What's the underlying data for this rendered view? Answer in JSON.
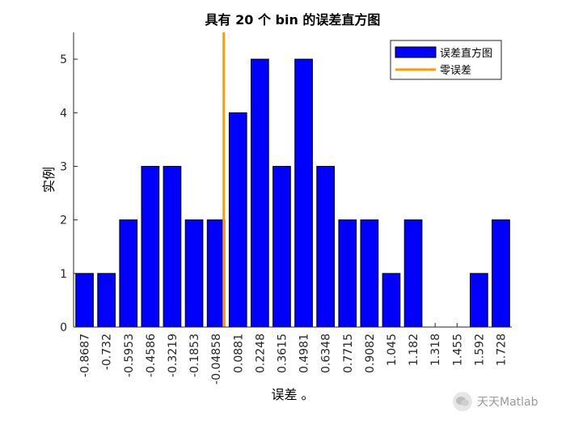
{
  "chart_data": {
    "type": "bar",
    "title": "具有 20 个 bin 的误差直方图",
    "xlabel": "误差 。",
    "ylabel": "实例",
    "categories": [
      "-0.8687",
      "-0.732",
      "-0.5953",
      "-0.4586",
      "-0.3219",
      "-0.1853",
      "-0.04858",
      "0.0881",
      "0.2248",
      "0.3615",
      "0.4981",
      "0.6348",
      "0.7715",
      "0.9082",
      "1.045",
      "1.182",
      "1.318",
      "1.455",
      "1.592",
      "1.728"
    ],
    "series": [
      {
        "name": "误差直方图",
        "color": "#0000ff",
        "values": [
          1,
          1,
          2,
          3,
          3,
          2,
          2,
          4,
          5,
          3,
          5,
          3,
          2,
          2,
          1,
          2,
          0,
          0,
          1,
          2
        ]
      }
    ],
    "reference_lines": [
      {
        "name": "零误差",
        "color": "#ff9900",
        "x": 0
      }
    ],
    "ylim": [
      0,
      5.5
    ],
    "yticks": [
      0,
      1,
      2,
      3,
      4,
      5
    ],
    "grid": false,
    "legend": "top-right"
  },
  "watermark": {
    "text": "天天Matlab",
    "icon": "wechat-icon"
  }
}
